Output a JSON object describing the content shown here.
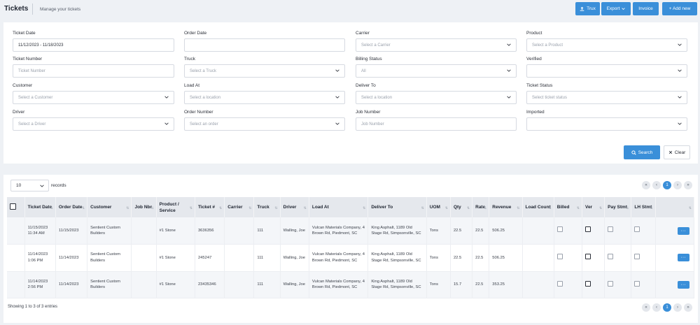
{
  "header": {
    "title": "Tickets",
    "subtitle": "Manage your tickets",
    "buttons": {
      "trux": "Trux",
      "export": "Export",
      "invoice": "Invoice",
      "add_new": "+ Add new"
    }
  },
  "filters": {
    "ticket_date": {
      "label": "Ticket Date",
      "value": "11/12/2023 - 11/18/2023"
    },
    "order_date": {
      "label": "Order Date",
      "value": ""
    },
    "carrier": {
      "label": "Carrier",
      "placeholder": "Select a Carrier"
    },
    "product": {
      "label": "Product",
      "placeholder": "Select a Product"
    },
    "ticket_number": {
      "label": "Ticket Number",
      "placeholder": "Ticket Number"
    },
    "truck": {
      "label": "Truck",
      "placeholder": "Select a Truck"
    },
    "billing_status": {
      "label": "Billing Status",
      "value": "All"
    },
    "verified": {
      "label": "Verified",
      "value": ""
    },
    "customer": {
      "label": "Customer",
      "placeholder": "Select a Customer"
    },
    "load_at": {
      "label": "Load At",
      "placeholder": "Select a location"
    },
    "deliver_to": {
      "label": "Deliver To",
      "placeholder": "Select a location"
    },
    "ticket_status": {
      "label": "Ticket Status",
      "placeholder": "Select ticket status"
    },
    "driver": {
      "label": "Driver",
      "placeholder": "Select a Driver"
    },
    "order_number": {
      "label": "Order Number",
      "placeholder": "Select an order"
    },
    "job_number": {
      "label": "Job Number",
      "placeholder": "Job Number"
    },
    "imported": {
      "label": "Imported",
      "value": ""
    },
    "search_label": "Search",
    "clear_label": "Clear"
  },
  "table": {
    "page_size": "10",
    "records_label": "records",
    "current_page": "1",
    "columns": [
      "Ticket Date",
      "Order Date",
      "Customer",
      "Job Nbr",
      "Product / Service",
      "Ticket #",
      "Carrier",
      "Truck",
      "Driver",
      "Load At",
      "Deliver To",
      "UOM",
      "Qty",
      "Rate",
      "Revenue",
      "Load Count",
      "Billed",
      "Ver",
      "Pay Stmt",
      "LH Stmt"
    ],
    "rows": [
      {
        "ticket_date": "11/15/2023 11:34 AM",
        "order_date": "11/15/2023",
        "customer": "Sentient Custom Builders",
        "job_nbr": "",
        "product": "#1 Stone",
        "ticket": "3636356",
        "carrier": "",
        "truck": "111",
        "driver": "Walling, Joe",
        "load_at": "Vulcan Materials Company, 4 Brown Rd, Piedmont, SC",
        "deliver_to": "King Asphalt, 1189 Old Stage Rd, Simpsonville, SC",
        "uom": "Tons",
        "qty": "22.5",
        "rate": "22.5",
        "revenue": "506.25",
        "load_count": "",
        "ver_checked": true,
        "action": "···"
      },
      {
        "ticket_date": "11/14/2023 1:06 PM",
        "order_date": "11/14/2023",
        "customer": "Sentient Custom Builders",
        "job_nbr": "",
        "product": "#1 Stone",
        "ticket": "245247",
        "carrier": "",
        "truck": "111",
        "driver": "Walling, Joe",
        "load_at": "Vulcan Materials Company, 4 Brown Rd, Piedmont, SC",
        "deliver_to": "King Asphalt, 1189 Old Stage Rd, Simpsonville, SC",
        "uom": "Tons",
        "qty": "22.5",
        "rate": "22.5",
        "revenue": "506.25",
        "load_count": "",
        "ver_checked": true,
        "action": "···"
      },
      {
        "ticket_date": "11/14/2023 2:56 PM",
        "order_date": "11/14/2023",
        "customer": "Sentient Custom Builders",
        "job_nbr": "",
        "product": "#1 Stone",
        "ticket": "23435346",
        "carrier": "",
        "truck": "111",
        "driver": "Walling, Joe",
        "load_at": "Vulcan Materials Company, 4 Brown Rd, Piedmont, SC",
        "deliver_to": "King Asphalt, 1189 Old Stage Rd, Simpsonville, SC",
        "uom": "Tons",
        "qty": "15.7",
        "rate": "22.5",
        "revenue": "353.25",
        "load_count": "",
        "ver_checked": true,
        "action": "···"
      }
    ],
    "footer": "Showing 1 to 3 of 3 entries"
  },
  "colors": {
    "accent": "#3a8fd9",
    "header_bg": "#e5e8ed",
    "page_bg": "#eef1f5"
  }
}
